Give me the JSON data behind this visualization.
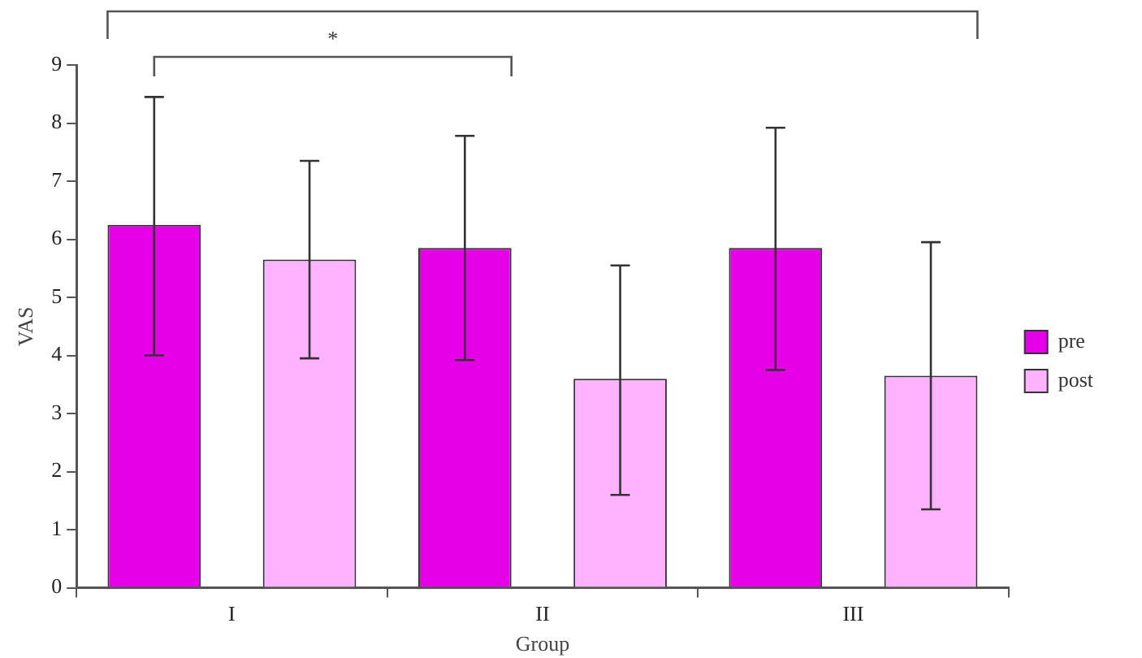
{
  "chart_data": {
    "type": "bar",
    "xlabel": "Group",
    "ylabel": "VAS",
    "categories": [
      "I",
      "II",
      "III"
    ],
    "series": [
      {
        "name": "pre",
        "color": "#e600e6",
        "values": [
          6.25,
          5.85,
          5.85
        ],
        "errors": [
          [
            4.0,
            8.45
          ],
          [
            3.92,
            7.78
          ],
          [
            3.75,
            7.92
          ]
        ]
      },
      {
        "name": "post",
        "color": "#ffb3ff",
        "values": [
          5.65,
          3.6,
          3.65
        ],
        "errors": [
          [
            3.95,
            7.35
          ],
          [
            1.6,
            5.55
          ],
          [
            1.35,
            5.95
          ]
        ]
      }
    ],
    "ylim": [
      0,
      9
    ],
    "yticks": [
      0,
      1,
      2,
      3,
      4,
      5,
      6,
      7,
      8,
      9
    ],
    "grid": false,
    "legend": "right",
    "annotations": [
      "*"
    ]
  }
}
